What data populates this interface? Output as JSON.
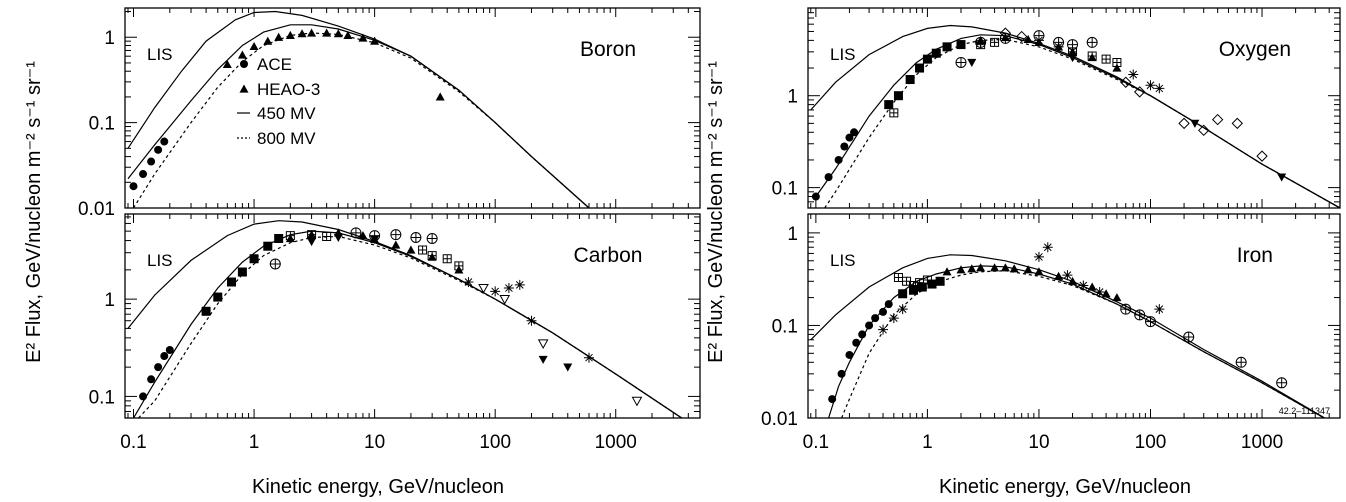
{
  "figure": {
    "xlabel": "Kinetic energy, GeV/nucleon",
    "ylabel": "E² Flux, GeV/nucleon m⁻² s⁻¹ sr⁻¹",
    "code": "42.2–111347"
  },
  "chart_data": [
    {
      "type": "line",
      "title": "Boron",
      "curve_label": "LIS",
      "xscale": "log",
      "yscale": "log",
      "xlim": [
        0.085,
        5000
      ],
      "ylim": [
        0.01,
        2.2
      ],
      "ytick_values": [
        0.01,
        0.1,
        1
      ],
      "ytick_labels": [
        "0.01",
        "0.1",
        "1"
      ],
      "legend": [
        {
          "label": "ACE",
          "marker": "circle"
        },
        {
          "label": "HEAO-3",
          "marker": "triangle"
        },
        {
          "label": "450 MV",
          "style": "solid"
        },
        {
          "label": "800 MV",
          "style": "dashed"
        }
      ],
      "series": [
        {
          "name": "LIS",
          "style": "solid",
          "x": [
            0.09,
            0.15,
            0.25,
            0.4,
            0.7,
            1,
            1.5,
            2.5,
            5,
            10,
            20,
            50,
            100,
            200,
            600
          ],
          "y": [
            0.05,
            0.15,
            0.4,
            0.9,
            1.6,
            1.95,
            2.0,
            1.8,
            1.35,
            0.95,
            0.6,
            0.24,
            0.1,
            0.04,
            0.01
          ]
        },
        {
          "name": "450 MV",
          "style": "solid",
          "x": [
            0.09,
            0.15,
            0.3,
            0.5,
            0.8,
            1.2,
            2,
            3,
            5,
            10,
            20,
            50,
            100,
            200,
            600
          ],
          "y": [
            0.022,
            0.055,
            0.18,
            0.42,
            0.8,
            1.15,
            1.4,
            1.4,
            1.25,
            0.92,
            0.6,
            0.24,
            0.1,
            0.04,
            0.01
          ]
        },
        {
          "name": "800 MV",
          "style": "dashed",
          "x": [
            0.1,
            0.15,
            0.3,
            0.5,
            0.8,
            1.2,
            2,
            3,
            5,
            10,
            20,
            50,
            100,
            200,
            600
          ],
          "y": [
            0.01,
            0.025,
            0.1,
            0.26,
            0.52,
            0.8,
            1.05,
            1.12,
            1.08,
            0.86,
            0.57,
            0.23,
            0.1,
            0.04,
            0.01
          ]
        },
        {
          "name": "ACE",
          "marker": "circle",
          "x": [
            0.1,
            0.12,
            0.14,
            0.16,
            0.18
          ],
          "y": [
            0.018,
            0.025,
            0.035,
            0.048,
            0.06
          ]
        },
        {
          "name": "HEAO-3",
          "marker": "triangle",
          "x": [
            0.6,
            0.8,
            1,
            1.3,
            1.6,
            2,
            2.5,
            3,
            4,
            5,
            6,
            8,
            10,
            35
          ],
          "y": [
            0.48,
            0.62,
            0.78,
            0.9,
            1.0,
            1.05,
            1.1,
            1.12,
            1.12,
            1.1,
            1.05,
            0.98,
            0.9,
            0.2
          ]
        }
      ]
    },
    {
      "type": "line",
      "title": "Carbon",
      "curve_label": "LIS",
      "xscale": "log",
      "yscale": "log",
      "xlim": [
        0.085,
        5000
      ],
      "ylim": [
        0.06,
        7.5
      ],
      "xtick_values": [
        0.1,
        1,
        10,
        100,
        1000
      ],
      "xtick_labels": [
        "0.1",
        "1",
        "10",
        "100",
        "1000"
      ],
      "ytick_values": [
        0.1,
        1
      ],
      "ytick_labels": [
        "0.1",
        "1"
      ],
      "series": [
        {
          "name": "LIS",
          "style": "solid",
          "x": [
            0.09,
            0.15,
            0.3,
            0.6,
            1,
            1.6,
            2.5,
            5,
            10,
            20,
            50,
            100,
            300,
            1000,
            5000
          ],
          "y": [
            0.5,
            1.1,
            2.5,
            4.5,
            5.9,
            6.4,
            6.2,
            5.2,
            3.9,
            2.8,
            1.6,
            1.0,
            0.45,
            0.17,
            0.045
          ]
        },
        {
          "name": "450 MV",
          "style": "solid",
          "x": [
            0.1,
            0.15,
            0.3,
            0.5,
            0.8,
            1.2,
            2,
            3,
            5,
            10,
            20,
            50,
            100,
            300,
            1000,
            5000
          ],
          "y": [
            0.06,
            0.14,
            0.55,
            1.3,
            2.4,
            3.5,
            4.6,
            5.0,
            4.8,
            3.8,
            2.75,
            1.6,
            1.0,
            0.45,
            0.17,
            0.045
          ]
        },
        {
          "name": "800 MV",
          "style": "dashed",
          "x": [
            0.11,
            0.15,
            0.3,
            0.5,
            0.8,
            1.2,
            2,
            3,
            5,
            10,
            20,
            50,
            100,
            300,
            1000,
            5000
          ],
          "y": [
            0.06,
            0.09,
            0.35,
            0.9,
            1.8,
            2.8,
            3.8,
            4.3,
            4.4,
            3.6,
            2.65,
            1.55,
            1.0,
            0.45,
            0.17,
            0.045
          ]
        },
        {
          "name": "ACE",
          "marker": "circle",
          "x": [
            0.12,
            0.14,
            0.16,
            0.18,
            0.2
          ],
          "y": [
            0.1,
            0.15,
            0.2,
            0.26,
            0.3
          ]
        },
        {
          "name": "filled squares",
          "marker": "square",
          "x": [
            0.4,
            0.5,
            0.65,
            0.8,
            1,
            1.3,
            1.6
          ],
          "y": [
            0.75,
            1.05,
            1.5,
            1.9,
            2.6,
            3.5,
            4.2
          ]
        },
        {
          "name": "crossed circles",
          "marker": "circle-cross",
          "x": [
            1.5,
            7,
            10,
            15,
            22,
            30
          ],
          "y": [
            2.3,
            4.8,
            4.5,
            4.6,
            4.3,
            4.2
          ]
        },
        {
          "name": "boxed plus",
          "marker": "square-plus",
          "x": [
            2,
            3,
            4,
            25,
            30,
            40,
            50
          ],
          "y": [
            4.5,
            4.6,
            4.4,
            3.2,
            2.8,
            2.6,
            2.2
          ]
        },
        {
          "name": "filled down-triangles",
          "marker": "tri-down",
          "x": [
            3,
            5,
            10,
            250,
            400
          ],
          "y": [
            3.9,
            4.3,
            4.1,
            0.24,
            0.2
          ]
        },
        {
          "name": "open down-triangles",
          "marker": "tri-down-open",
          "x": [
            80,
            120,
            250,
            1500
          ],
          "y": [
            1.3,
            1.0,
            0.35,
            0.09
          ]
        },
        {
          "name": "asterisks",
          "marker": "asterisk",
          "x": [
            60,
            100,
            130,
            160,
            200,
            600
          ],
          "y": [
            1.5,
            1.2,
            1.3,
            1.4,
            0.6,
            0.25
          ]
        },
        {
          "name": "HEAO-3",
          "marker": "triangle",
          "x": [
            2,
            3,
            5,
            8,
            10,
            15,
            20,
            30,
            50
          ],
          "y": [
            4.2,
            4.6,
            4.8,
            4.5,
            4.1,
            3.6,
            3.2,
            2.7,
            2.0
          ]
        }
      ]
    },
    {
      "type": "line",
      "title": "Oxygen",
      "curve_label": "LIS",
      "xscale": "log",
      "yscale": "log",
      "xlim": [
        0.085,
        5000
      ],
      "ylim": [
        0.06,
        9
      ],
      "ytick_values": [
        0.1,
        1
      ],
      "ytick_labels": [
        "0.1",
        "1"
      ],
      "series": [
        {
          "name": "LIS",
          "style": "solid",
          "x": [
            0.09,
            0.15,
            0.3,
            0.6,
            1,
            1.6,
            2.5,
            5,
            10,
            20,
            50,
            100,
            300,
            1000,
            5000
          ],
          "y": [
            0.7,
            1.4,
            2.8,
            4.4,
            5.4,
            5.8,
            5.6,
            4.8,
            3.7,
            2.7,
            1.6,
            1.0,
            0.45,
            0.18,
            0.06
          ]
        },
        {
          "name": "450 MV",
          "style": "solid",
          "x": [
            0.1,
            0.15,
            0.3,
            0.5,
            0.8,
            1.2,
            2,
            3,
            5,
            10,
            20,
            50,
            100,
            300,
            1000,
            5000
          ],
          "y": [
            0.08,
            0.16,
            0.6,
            1.3,
            2.3,
            3.2,
            4.2,
            4.6,
            4.5,
            3.6,
            2.6,
            1.55,
            1.0,
            0.45,
            0.18,
            0.06
          ]
        },
        {
          "name": "800 MV",
          "style": "dashed",
          "x": [
            0.12,
            0.15,
            0.3,
            0.5,
            0.8,
            1.2,
            2,
            3,
            5,
            10,
            20,
            50,
            100,
            300,
            1000,
            5000
          ],
          "y": [
            0.06,
            0.09,
            0.35,
            0.85,
            1.7,
            2.6,
            3.6,
            4.0,
            4.1,
            3.4,
            2.5,
            1.5,
            1.0,
            0.45,
            0.18,
            0.06
          ]
        },
        {
          "name": "ACE",
          "marker": "circle",
          "x": [
            0.1,
            0.13,
            0.16,
            0.18,
            0.2,
            0.22
          ],
          "y": [
            0.08,
            0.13,
            0.2,
            0.28,
            0.35,
            0.4
          ]
        },
        {
          "name": "filled squares",
          "marker": "square",
          "x": [
            0.45,
            0.55,
            0.7,
            0.85,
            1,
            1.2,
            1.5,
            2
          ],
          "y": [
            0.8,
            1.0,
            1.5,
            2.0,
            2.5,
            2.9,
            3.4,
            3.6
          ]
        },
        {
          "name": "crossed circles",
          "marker": "circle-cross",
          "x": [
            2,
            3,
            5,
            10,
            15,
            20,
            30
          ],
          "y": [
            2.3,
            3.8,
            4.2,
            4.5,
            3.8,
            3.6,
            3.8
          ]
        },
        {
          "name": "boxed plus",
          "marker": "square-plus",
          "x": [
            0.5,
            3,
            4,
            20,
            30,
            40,
            50
          ],
          "y": [
            0.65,
            3.6,
            3.8,
            3.0,
            2.7,
            2.5,
            2.3
          ]
        },
        {
          "name": "open diamonds",
          "marker": "diamond-open",
          "x": [
            5,
            7,
            60,
            80,
            200,
            300,
            400,
            600,
            1000
          ],
          "y": [
            4.8,
            4.4,
            1.4,
            1.1,
            0.5,
            0.42,
            0.55,
            0.5,
            0.22
          ]
        },
        {
          "name": "asterisks",
          "marker": "asterisk",
          "x": [
            10,
            15,
            70,
            100,
            120
          ],
          "y": [
            4.0,
            3.4,
            1.7,
            1.3,
            1.2
          ]
        },
        {
          "name": "filled down-triangles",
          "marker": "tri-down",
          "x": [
            2.5,
            20,
            250,
            1500
          ],
          "y": [
            2.3,
            2.6,
            0.5,
            0.13
          ]
        },
        {
          "name": "HEAO-3",
          "marker": "triangle",
          "x": [
            2,
            3,
            5,
            8,
            10,
            15,
            20,
            30,
            50
          ],
          "y": [
            3.6,
            4.0,
            4.3,
            4.1,
            3.8,
            3.4,
            3.0,
            2.6,
            2.0
          ]
        }
      ]
    },
    {
      "type": "line",
      "title": "Iron",
      "curve_label": "LIS",
      "xscale": "log",
      "yscale": "log",
      "xlim": [
        0.085,
        5000
      ],
      "ylim": [
        0.01,
        1.6
      ],
      "xtick_values": [
        0.1,
        1,
        10,
        100,
        1000
      ],
      "xtick_labels": [
        "0.1",
        "1",
        "10",
        "100",
        "1000"
      ],
      "ytick_values": [
        0.01,
        0.1,
        1
      ],
      "ytick_labels": [
        "0.01",
        "0.1",
        "1"
      ],
      "series": [
        {
          "name": "LIS",
          "style": "solid",
          "x": [
            0.09,
            0.15,
            0.3,
            0.6,
            1,
            1.6,
            2.5,
            5,
            10,
            20,
            50,
            100,
            300,
            1000,
            5000
          ],
          "y": [
            0.07,
            0.13,
            0.26,
            0.42,
            0.53,
            0.58,
            0.57,
            0.5,
            0.4,
            0.3,
            0.18,
            0.12,
            0.055,
            0.025,
            0.008
          ]
        },
        {
          "name": "450 MV",
          "style": "solid",
          "x": [
            0.13,
            0.16,
            0.2,
            0.3,
            0.5,
            0.8,
            1.2,
            2,
            3,
            5,
            10,
            20,
            50,
            100,
            300,
            1000,
            5000
          ],
          "y": [
            0.01,
            0.022,
            0.04,
            0.1,
            0.2,
            0.3,
            0.36,
            0.42,
            0.44,
            0.43,
            0.36,
            0.28,
            0.17,
            0.11,
            0.052,
            0.024,
            0.008
          ]
        },
        {
          "name": "800 MV",
          "style": "dashed",
          "x": [
            0.17,
            0.2,
            0.3,
            0.5,
            0.8,
            1.2,
            2,
            3,
            5,
            10,
            20,
            50,
            100,
            300,
            1000,
            5000
          ],
          "y": [
            0.01,
            0.016,
            0.05,
            0.13,
            0.22,
            0.29,
            0.35,
            0.38,
            0.39,
            0.34,
            0.27,
            0.17,
            0.11,
            0.052,
            0.024,
            0.008
          ]
        },
        {
          "name": "ACE",
          "marker": "circle",
          "x": [
            0.14,
            0.17,
            0.2,
            0.23,
            0.26,
            0.3,
            0.34,
            0.4,
            0.45
          ],
          "y": [
            0.016,
            0.03,
            0.048,
            0.065,
            0.08,
            0.1,
            0.12,
            0.14,
            0.17
          ]
        },
        {
          "name": "filled squares",
          "marker": "square",
          "x": [
            0.6,
            0.75,
            0.9,
            1.1,
            1.3
          ],
          "y": [
            0.22,
            0.24,
            0.26,
            0.28,
            0.3
          ]
        },
        {
          "name": "boxed plus",
          "marker": "square-plus",
          "x": [
            0.55,
            0.65,
            0.75,
            0.85,
            1.0
          ],
          "y": [
            0.33,
            0.3,
            0.27,
            0.29,
            0.31
          ]
        },
        {
          "name": "crossed circles",
          "marker": "circle-cross",
          "x": [
            60,
            80,
            100,
            220,
            650,
            1500
          ],
          "y": [
            0.15,
            0.13,
            0.11,
            0.075,
            0.04,
            0.024
          ]
        },
        {
          "name": "asterisks",
          "marker": "asterisk",
          "x": [
            0.4,
            0.5,
            0.6,
            10,
            12,
            18,
            25,
            35,
            120
          ],
          "y": [
            0.09,
            0.12,
            0.15,
            0.55,
            0.7,
            0.35,
            0.27,
            0.23,
            0.15
          ]
        },
        {
          "name": "HEAO-3",
          "marker": "triangle",
          "x": [
            1.5,
            2,
            2.5,
            3,
            4,
            5,
            6,
            8,
            10,
            15,
            20,
            30,
            40,
            50
          ],
          "y": [
            0.38,
            0.4,
            0.41,
            0.42,
            0.42,
            0.42,
            0.41,
            0.4,
            0.38,
            0.34,
            0.3,
            0.26,
            0.22,
            0.2
          ]
        }
      ]
    }
  ]
}
